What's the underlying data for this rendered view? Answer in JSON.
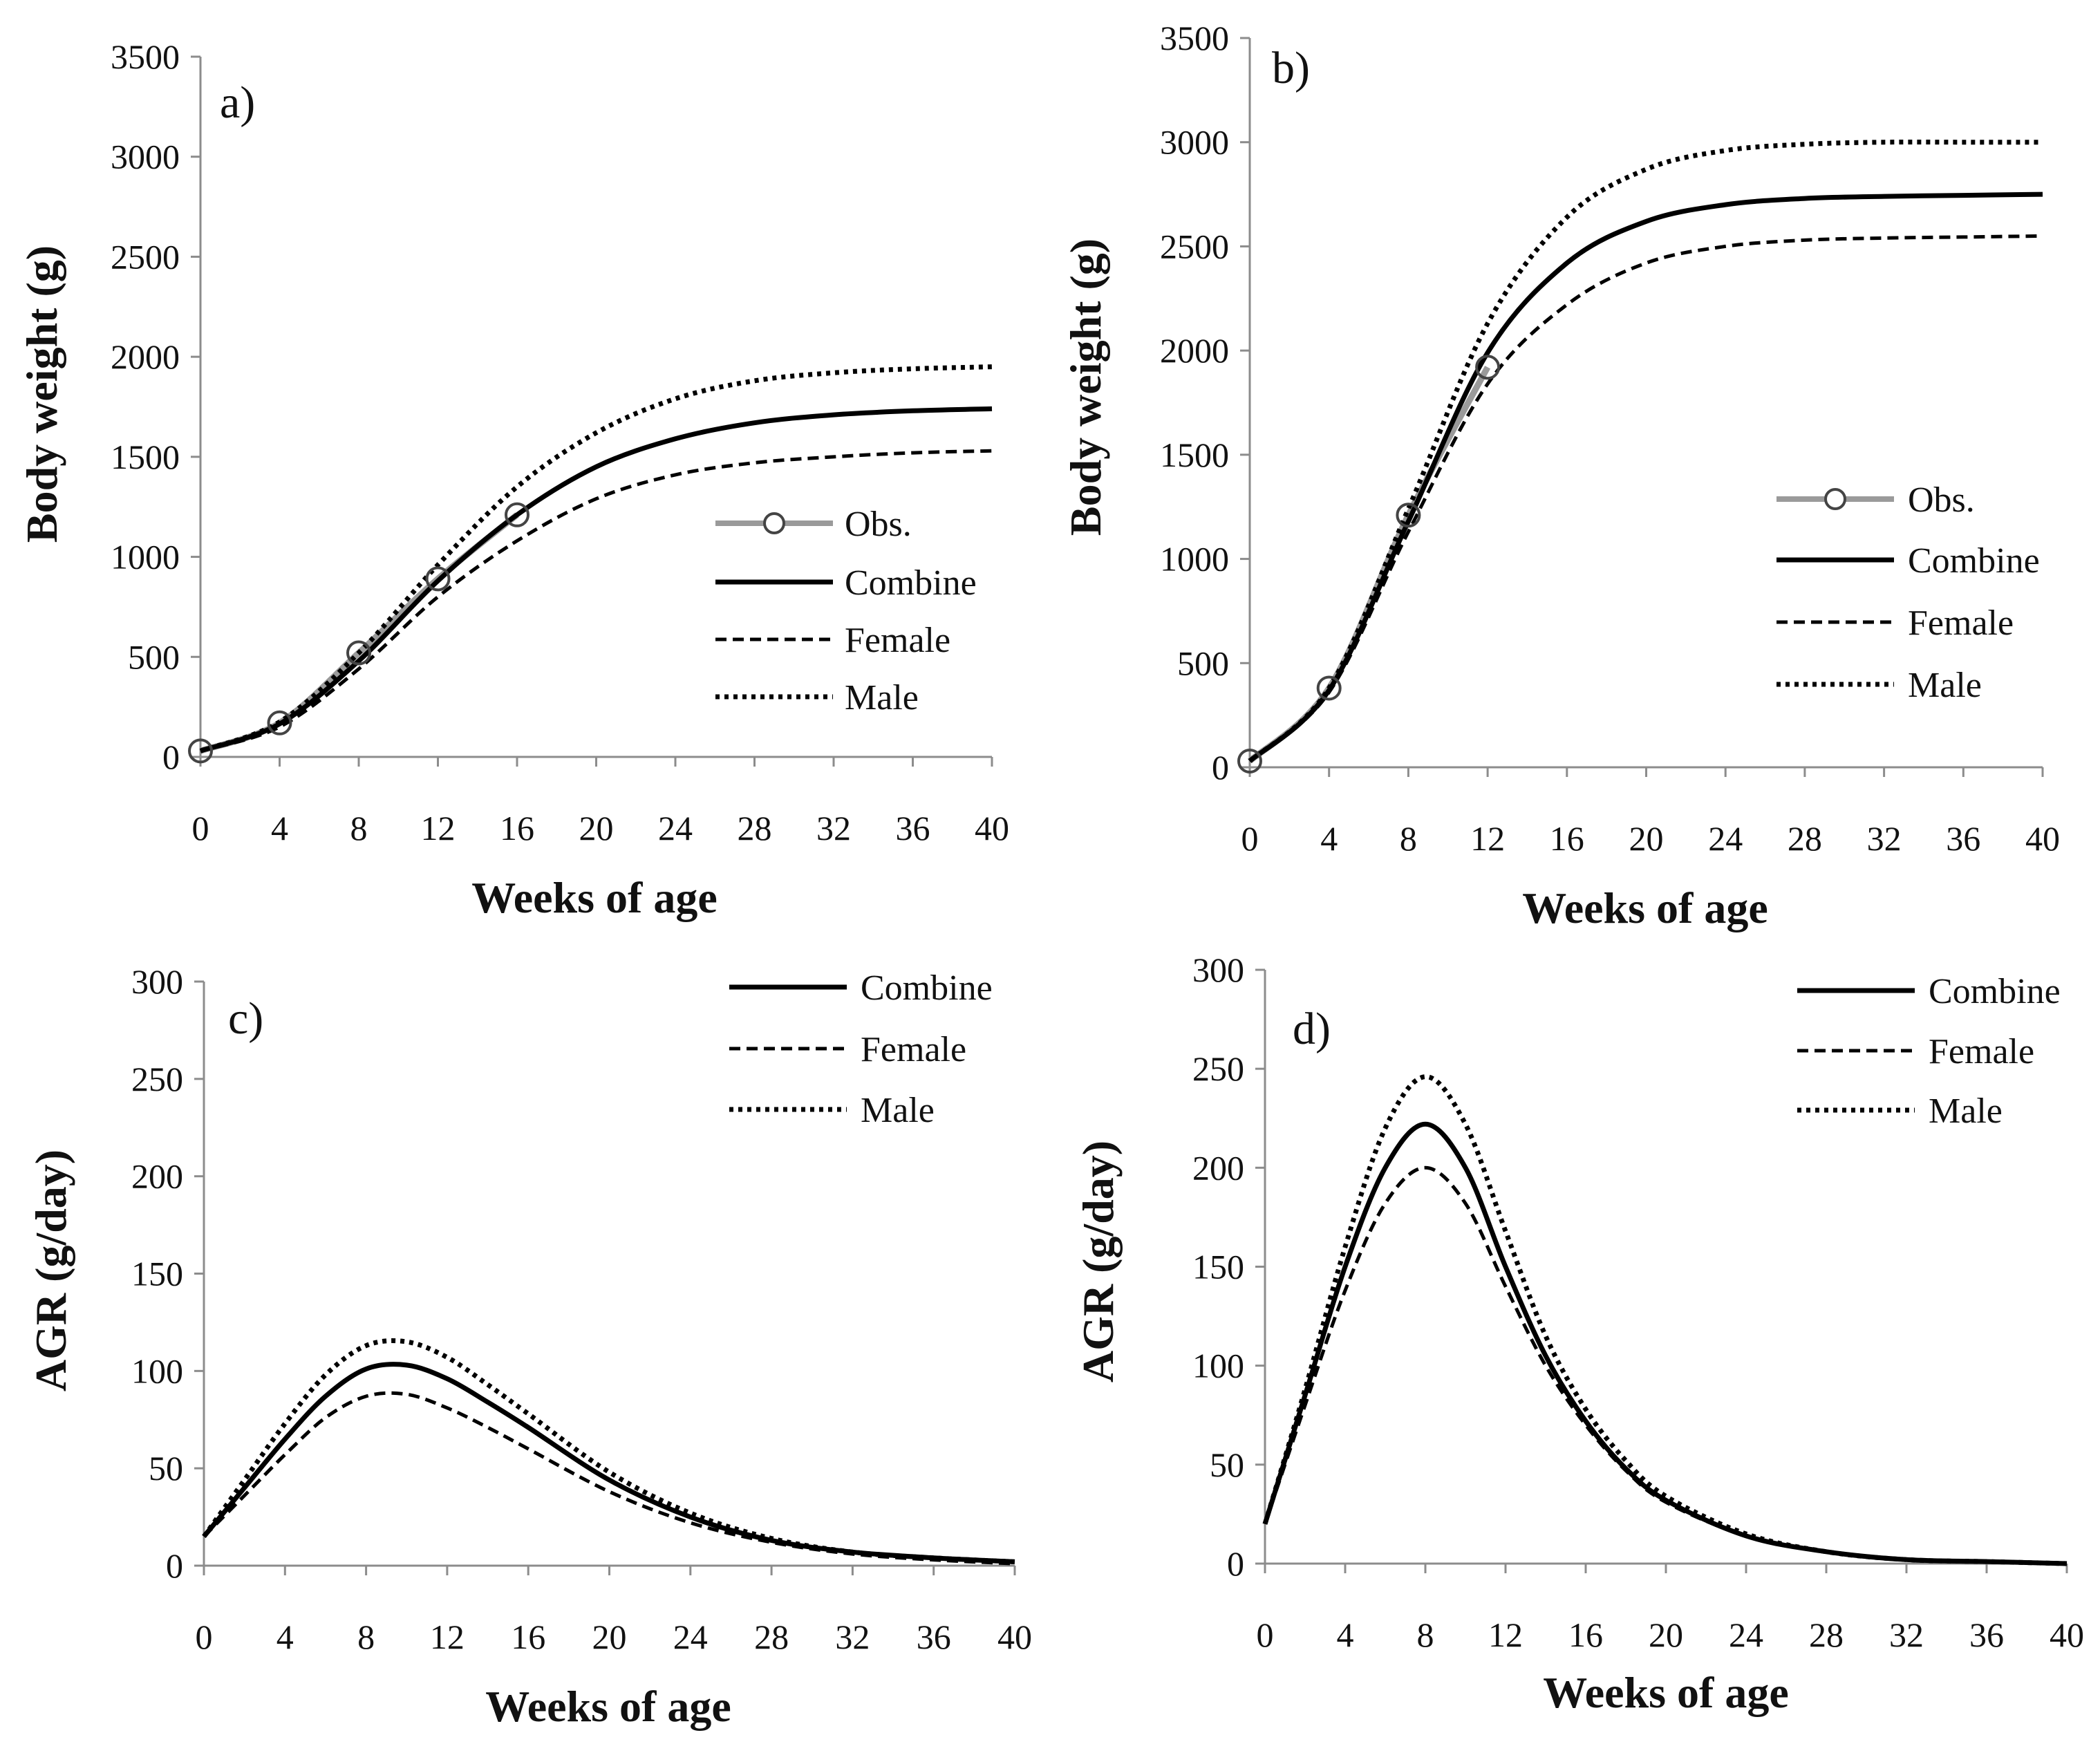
{
  "colors": {
    "axis": "#8c8c8c",
    "series": "#000000",
    "observed": "#9a9a9a",
    "background": "#ffffff"
  },
  "chart_data": [
    {
      "panel": "a)",
      "type": "line",
      "xlabel": "Weeks of age",
      "ylabel": "Body weight (g)",
      "xlim": [
        0,
        40
      ],
      "ylim": [
        0,
        3500
      ],
      "xticks": [
        0,
        4,
        8,
        12,
        16,
        20,
        24,
        28,
        32,
        36,
        40
      ],
      "yticks": [
        0,
        500,
        1000,
        1500,
        2000,
        2500,
        3000,
        3500
      ],
      "legend": "right",
      "observed": {
        "name": "Obs.",
        "x": [
          0,
          4,
          8,
          12,
          16
        ],
        "y": [
          30,
          170,
          520,
          890,
          1210
        ]
      },
      "series": [
        {
          "name": "Combine",
          "style": "solid",
          "x": [
            0,
            4,
            8,
            12,
            16,
            20,
            24,
            28,
            32,
            36,
            40
          ],
          "y": [
            30,
            165,
            480,
            880,
            1210,
            1450,
            1590,
            1670,
            1710,
            1730,
            1740
          ]
        },
        {
          "name": "Female",
          "style": "dashed",
          "x": [
            0,
            4,
            8,
            12,
            16,
            20,
            24,
            28,
            32,
            36,
            40
          ],
          "y": [
            30,
            150,
            440,
            800,
            1080,
            1290,
            1410,
            1470,
            1500,
            1520,
            1530
          ]
        },
        {
          "name": "Male",
          "style": "dotted",
          "x": [
            0,
            4,
            8,
            12,
            16,
            20,
            24,
            28,
            32,
            36,
            40
          ],
          "y": [
            30,
            175,
            520,
            960,
            1350,
            1620,
            1790,
            1880,
            1920,
            1940,
            1950
          ]
        }
      ]
    },
    {
      "panel": "b)",
      "type": "line",
      "xlabel": "Weeks of age",
      "ylabel": "Body weight (g)",
      "xlim": [
        0,
        40
      ],
      "ylim": [
        0,
        3500
      ],
      "xticks": [
        0,
        4,
        8,
        12,
        16,
        20,
        24,
        28,
        32,
        36,
        40
      ],
      "yticks": [
        0,
        500,
        1000,
        1500,
        2000,
        2500,
        3000,
        3500
      ],
      "legend": "right",
      "observed": {
        "name": "Obs.",
        "x": [
          0,
          4,
          8,
          12
        ],
        "y": [
          30,
          380,
          1210,
          1920
        ]
      },
      "series": [
        {
          "name": "Combine",
          "style": "solid",
          "x": [
            0,
            4,
            8,
            12,
            16,
            20,
            24,
            28,
            32,
            36,
            40
          ],
          "y": [
            30,
            370,
            1180,
            1990,
            2420,
            2620,
            2700,
            2730,
            2740,
            2745,
            2750
          ]
        },
        {
          "name": "Female",
          "style": "dashed",
          "x": [
            0,
            4,
            8,
            12,
            16,
            20,
            24,
            28,
            32,
            36,
            40
          ],
          "y": [
            30,
            360,
            1130,
            1840,
            2220,
            2420,
            2500,
            2530,
            2540,
            2545,
            2550
          ]
        },
        {
          "name": "Male",
          "style": "dotted",
          "x": [
            0,
            4,
            8,
            12,
            16,
            20,
            24,
            28,
            32,
            36,
            40
          ],
          "y": [
            30,
            380,
            1240,
            2130,
            2640,
            2870,
            2960,
            2990,
            3000,
            3000,
            3000
          ]
        }
      ]
    },
    {
      "panel": "c)",
      "type": "line",
      "xlabel": "Weeks of age",
      "ylabel": "AGR (g/day)",
      "xlim": [
        0,
        40
      ],
      "ylim": [
        0,
        300
      ],
      "xticks": [
        0,
        4,
        8,
        12,
        16,
        20,
        24,
        28,
        32,
        36,
        40
      ],
      "yticks": [
        0,
        50,
        100,
        150,
        200,
        250,
        300
      ],
      "legend": "top-right",
      "series": [
        {
          "name": "Combine",
          "style": "solid",
          "x": [
            0,
            2,
            4,
            6,
            8,
            10,
            12,
            14,
            16,
            20,
            24,
            28,
            32,
            36,
            40
          ],
          "y": [
            15,
            40,
            65,
            87,
            101,
            103,
            96,
            84,
            71,
            44,
            25,
            13,
            7,
            4,
            2
          ]
        },
        {
          "name": "Female",
          "style": "dashed",
          "x": [
            0,
            2,
            4,
            6,
            8,
            10,
            12,
            14,
            16,
            20,
            24,
            28,
            32,
            36,
            40
          ],
          "y": [
            15,
            36,
            57,
            76,
            87,
            88,
            81,
            71,
            60,
            38,
            22,
            12,
            6,
            3,
            1
          ]
        },
        {
          "name": "Male",
          "style": "dotted",
          "x": [
            0,
            2,
            4,
            6,
            8,
            10,
            12,
            14,
            16,
            20,
            24,
            28,
            32,
            36,
            40
          ],
          "y": [
            15,
            44,
            73,
            98,
            113,
            115,
            107,
            93,
            78,
            48,
            27,
            14,
            7,
            4,
            2
          ]
        }
      ]
    },
    {
      "panel": "d)",
      "type": "line",
      "xlabel": "Weeks of age",
      "ylabel": "AGR (g/day)",
      "xlim": [
        0,
        40
      ],
      "ylim": [
        0,
        300
      ],
      "xticks": [
        0,
        4,
        8,
        12,
        16,
        20,
        24,
        28,
        32,
        36,
        40
      ],
      "yticks": [
        0,
        50,
        100,
        150,
        200,
        250,
        300
      ],
      "legend": "top-right",
      "series": [
        {
          "name": "Combine",
          "style": "solid",
          "x": [
            0,
            2,
            4,
            6,
            8,
            10,
            12,
            14,
            16,
            18,
            20,
            24,
            28,
            32,
            36,
            40
          ],
          "y": [
            20,
            85,
            150,
            200,
            222,
            200,
            150,
            105,
            72,
            48,
            32,
            14,
            6,
            2,
            1,
            0
          ]
        },
        {
          "name": "Female",
          "style": "dashed",
          "x": [
            0,
            2,
            4,
            6,
            8,
            10,
            12,
            14,
            16,
            18,
            20,
            24,
            28,
            32,
            36,
            40
          ],
          "y": [
            20,
            80,
            138,
            182,
            200,
            182,
            140,
            100,
            70,
            47,
            31,
            14,
            6,
            2,
            1,
            0
          ]
        },
        {
          "name": "Male",
          "style": "dotted",
          "x": [
            0,
            2,
            4,
            6,
            8,
            10,
            12,
            14,
            16,
            18,
            20,
            24,
            28,
            32,
            36,
            40
          ],
          "y": [
            20,
            88,
            160,
            220,
            246,
            222,
            168,
            115,
            78,
            52,
            34,
            15,
            6,
            2,
            1,
            0
          ]
        }
      ]
    }
  ]
}
